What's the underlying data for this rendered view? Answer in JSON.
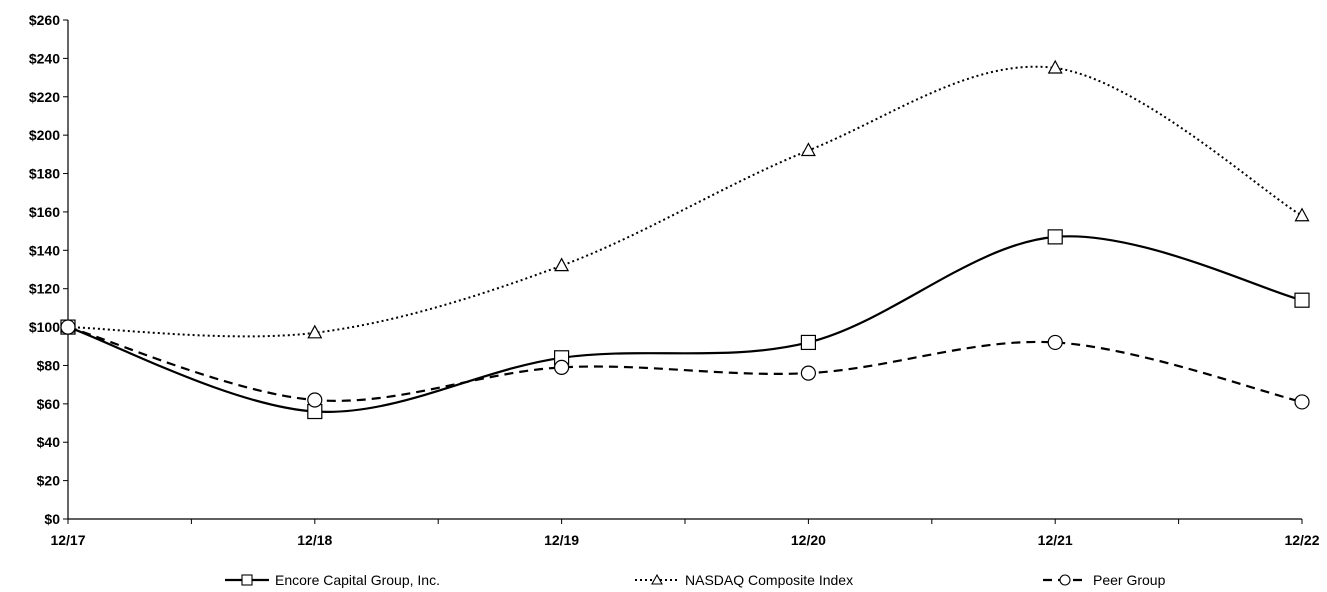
{
  "chart_data": {
    "type": "line",
    "title": "",
    "xlabel": "",
    "ylabel": "",
    "categories": [
      "12/17",
      "12/18",
      "12/19",
      "12/20",
      "12/21",
      "12/22"
    ],
    "ylim": [
      0,
      260
    ],
    "yticks": [
      0,
      20,
      40,
      60,
      80,
      100,
      120,
      140,
      160,
      180,
      200,
      220,
      240,
      260
    ],
    "ytick_labels": [
      "$0",
      "$20",
      "$40",
      "$60",
      "$80",
      "$100",
      "$120",
      "$140",
      "$160",
      "$180",
      "$200",
      "$220",
      "$240",
      "$260"
    ],
    "grid": false,
    "legend_position": "bottom",
    "series": [
      {
        "name": "Encore Capital Group, Inc.",
        "values": [
          100,
          56,
          84,
          92,
          147,
          114
        ],
        "line_style": "solid",
        "marker": "square",
        "color": "#000000"
      },
      {
        "name": "NASDAQ Composite Index",
        "values": [
          100,
          97,
          132,
          192,
          235,
          158
        ],
        "line_style": "dotted",
        "marker": "triangle",
        "color": "#000000"
      },
      {
        "name": "Peer Group",
        "values": [
          100,
          62,
          79,
          76,
          92,
          61
        ],
        "line_style": "dashed",
        "marker": "circle",
        "color": "#000000"
      }
    ]
  }
}
